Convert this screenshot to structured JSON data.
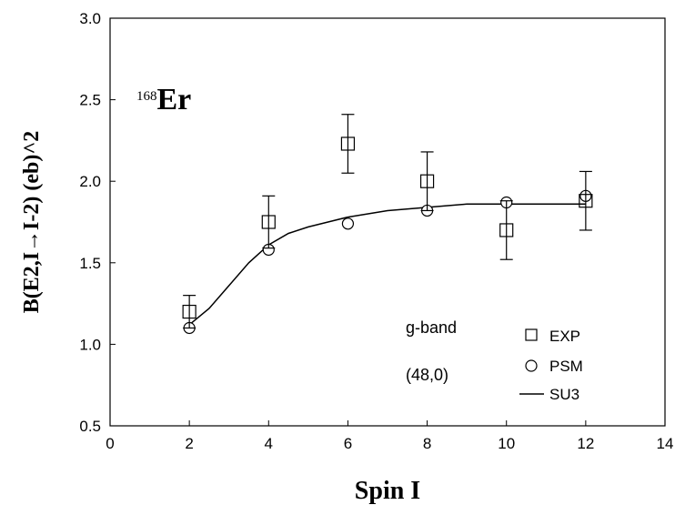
{
  "chart_data": {
    "type": "scatter",
    "title": "",
    "xlabel": "Spin I",
    "ylabel": "B(E2,I→I-2) (eb)^2",
    "xlim": [
      0,
      14
    ],
    "ylim": [
      0.5,
      3.0
    ],
    "x_ticks": [
      "0",
      "2",
      "4",
      "6",
      "8",
      "10",
      "12",
      "14"
    ],
    "y_ticks": [
      "0.5",
      "1.0",
      "1.5",
      "2.0",
      "2.5",
      "3.0"
    ],
    "nucleus_label": {
      "mass": "168",
      "element": "Er"
    },
    "annotations": [
      "g-band",
      "(48,0)"
    ],
    "legend_position": "bottom-right",
    "series": [
      {
        "name": "EXP",
        "kind": "open-square-with-errorbars",
        "x": [
          2,
          4,
          6,
          8,
          10,
          12
        ],
        "y": [
          1.2,
          1.75,
          2.23,
          2.0,
          1.7,
          1.88
        ],
        "err": [
          0.1,
          0.16,
          0.18,
          0.18,
          0.18,
          0.18
        ]
      },
      {
        "name": "PSM",
        "kind": "open-circle",
        "x": [
          2,
          4,
          6,
          8,
          10,
          12
        ],
        "y": [
          1.1,
          1.58,
          1.74,
          1.82,
          1.87,
          1.91
        ]
      },
      {
        "name": "SU3",
        "kind": "line",
        "x": [
          2,
          2.5,
          3,
          3.5,
          4,
          4.5,
          5,
          5.5,
          6,
          7,
          8,
          9,
          10,
          11,
          12
        ],
        "y": [
          1.12,
          1.22,
          1.36,
          1.5,
          1.61,
          1.68,
          1.72,
          1.75,
          1.78,
          1.82,
          1.84,
          1.86,
          1.86,
          1.86,
          1.86
        ]
      }
    ]
  }
}
